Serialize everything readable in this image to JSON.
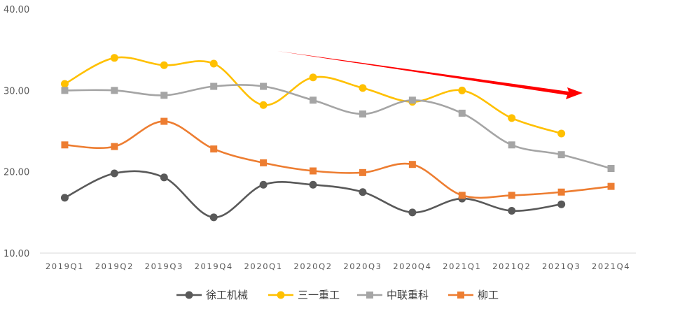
{
  "chart_data": {
    "type": "line",
    "title": "",
    "xlabel": "",
    "ylabel": "",
    "ylim": [
      10,
      40
    ],
    "yticks": [
      "10.00",
      "20.00",
      "30.00",
      "40.00"
    ],
    "smooth": true,
    "grid": false,
    "legend_position": "bottom",
    "categories": [
      "2019Q1",
      "2019Q2",
      "2019Q3",
      "2019Q4",
      "2020Q1",
      "2020Q2",
      "2020Q3",
      "2020Q4",
      "2021Q1",
      "2021Q2",
      "2021Q3",
      "2021Q4"
    ],
    "series": [
      {
        "name": "徐工机械",
        "color": "#595959",
        "marker": "circle",
        "values": [
          16.8,
          19.8,
          19.3,
          14.4,
          18.4,
          18.4,
          17.5,
          15.0,
          16.7,
          15.2,
          16.0,
          null
        ]
      },
      {
        "name": "三一重工",
        "color": "#FFC000",
        "marker": "circle",
        "values": [
          30.8,
          34.0,
          33.1,
          33.3,
          28.2,
          31.6,
          30.3,
          28.6,
          30.0,
          26.6,
          24.7,
          null
        ]
      },
      {
        "name": "中联重科",
        "color": "#A5A5A5",
        "marker": "square",
        "values": [
          30.0,
          30.0,
          29.4,
          30.5,
          30.5,
          28.8,
          27.1,
          28.8,
          27.2,
          23.3,
          22.1,
          20.4
        ]
      },
      {
        "name": "柳工",
        "color": "#ED7D31",
        "marker": "square",
        "values": [
          23.3,
          23.1,
          26.2,
          22.8,
          21.1,
          20.1,
          19.9,
          20.9,
          17.1,
          17.1,
          17.5,
          18.2
        ]
      }
    ],
    "annotations": [
      {
        "type": "arrow",
        "color": "#FF0000",
        "direction": "downward trend"
      }
    ]
  }
}
